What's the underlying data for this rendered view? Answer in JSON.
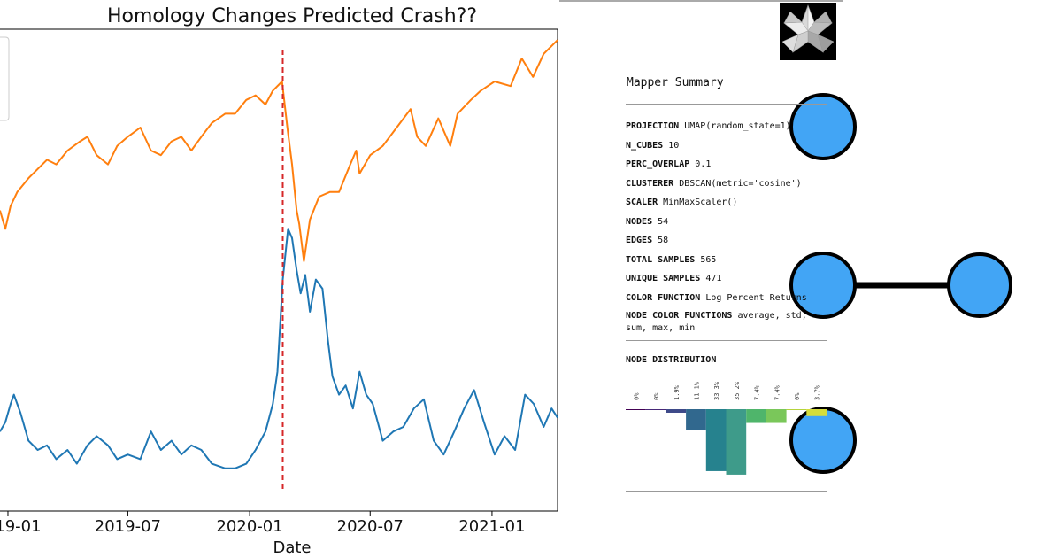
{
  "chart_data": {
    "type": "line",
    "title": "Homology Changes Predicted Crash??",
    "xlabel": "Date",
    "x_ticks": [
      "2019-01",
      "2019-07",
      "2020-01",
      "2020-07",
      "2021-01"
    ],
    "x_range": [
      "2018-12-20",
      "2021-04-10"
    ],
    "event_line": {
      "date": "2020-02-20",
      "color": "#d62728",
      "style": "dashed"
    },
    "series": [
      {
        "color": "#ff7f0e",
        "points": [
          [
            "2018-12-20",
            0.62
          ],
          [
            "2018-12-28",
            0.58
          ],
          [
            "2019-01-05",
            0.63
          ],
          [
            "2019-01-15",
            0.66
          ],
          [
            "2019-02-01",
            0.69
          ],
          [
            "2019-02-15",
            0.71
          ],
          [
            "2019-03-01",
            0.73
          ],
          [
            "2019-03-15",
            0.72
          ],
          [
            "2019-04-01",
            0.75
          ],
          [
            "2019-04-20",
            0.77
          ],
          [
            "2019-05-01",
            0.78
          ],
          [
            "2019-05-15",
            0.74
          ],
          [
            "2019-06-01",
            0.72
          ],
          [
            "2019-06-15",
            0.76
          ],
          [
            "2019-07-01",
            0.78
          ],
          [
            "2019-07-20",
            0.8
          ],
          [
            "2019-08-05",
            0.75
          ],
          [
            "2019-08-20",
            0.74
          ],
          [
            "2019-09-05",
            0.77
          ],
          [
            "2019-09-20",
            0.78
          ],
          [
            "2019-10-05",
            0.75
          ],
          [
            "2019-10-20",
            0.78
          ],
          [
            "2019-11-05",
            0.81
          ],
          [
            "2019-11-25",
            0.83
          ],
          [
            "2019-12-10",
            0.83
          ],
          [
            "2019-12-27",
            0.86
          ],
          [
            "2020-01-10",
            0.87
          ],
          [
            "2020-01-25",
            0.85
          ],
          [
            "2020-02-05",
            0.88
          ],
          [
            "2020-02-19",
            0.9
          ],
          [
            "2020-02-27",
            0.8
          ],
          [
            "2020-03-05",
            0.72
          ],
          [
            "2020-03-12",
            0.62
          ],
          [
            "2020-03-16",
            0.59
          ],
          [
            "2020-03-23",
            0.51
          ],
          [
            "2020-04-01",
            0.6
          ],
          [
            "2020-04-15",
            0.65
          ],
          [
            "2020-05-01",
            0.66
          ],
          [
            "2020-05-15",
            0.66
          ],
          [
            "2020-06-01",
            0.72
          ],
          [
            "2020-06-10",
            0.75
          ],
          [
            "2020-06-15",
            0.7
          ],
          [
            "2020-07-01",
            0.74
          ],
          [
            "2020-07-20",
            0.76
          ],
          [
            "2020-08-10",
            0.8
          ],
          [
            "2020-08-31",
            0.84
          ],
          [
            "2020-09-10",
            0.78
          ],
          [
            "2020-09-23",
            0.76
          ],
          [
            "2020-10-12",
            0.82
          ],
          [
            "2020-10-30",
            0.76
          ],
          [
            "2020-11-10",
            0.83
          ],
          [
            "2020-11-30",
            0.86
          ],
          [
            "2020-12-15",
            0.88
          ],
          [
            "2021-01-05",
            0.9
          ],
          [
            "2021-01-29",
            0.89
          ],
          [
            "2021-02-15",
            0.95
          ],
          [
            "2021-03-04",
            0.91
          ],
          [
            "2021-03-20",
            0.96
          ],
          [
            "2021-04-10",
            0.99
          ]
        ]
      },
      {
        "color": "#1f77b4",
        "points": [
          [
            "2018-12-20",
            0.14
          ],
          [
            "2018-12-28",
            0.16
          ],
          [
            "2019-01-05",
            0.2
          ],
          [
            "2019-01-10",
            0.22
          ],
          [
            "2019-01-20",
            0.18
          ],
          [
            "2019-02-01",
            0.12
          ],
          [
            "2019-02-15",
            0.1
          ],
          [
            "2019-03-01",
            0.11
          ],
          [
            "2019-03-15",
            0.08
          ],
          [
            "2019-04-01",
            0.1
          ],
          [
            "2019-04-15",
            0.07
          ],
          [
            "2019-05-01",
            0.11
          ],
          [
            "2019-05-15",
            0.13
          ],
          [
            "2019-06-01",
            0.11
          ],
          [
            "2019-06-15",
            0.08
          ],
          [
            "2019-07-01",
            0.09
          ],
          [
            "2019-07-20",
            0.08
          ],
          [
            "2019-08-05",
            0.14
          ],
          [
            "2019-08-20",
            0.1
          ],
          [
            "2019-09-05",
            0.12
          ],
          [
            "2019-09-20",
            0.09
          ],
          [
            "2019-10-05",
            0.11
          ],
          [
            "2019-10-20",
            0.1
          ],
          [
            "2019-11-05",
            0.07
          ],
          [
            "2019-11-25",
            0.06
          ],
          [
            "2019-12-10",
            0.06
          ],
          [
            "2019-12-27",
            0.07
          ],
          [
            "2020-01-10",
            0.1
          ],
          [
            "2020-01-25",
            0.14
          ],
          [
            "2020-02-05",
            0.2
          ],
          [
            "2020-02-12",
            0.27
          ],
          [
            "2020-02-20",
            0.47
          ],
          [
            "2020-02-28",
            0.58
          ],
          [
            "2020-03-05",
            0.56
          ],
          [
            "2020-03-12",
            0.49
          ],
          [
            "2020-03-18",
            0.44
          ],
          [
            "2020-03-25",
            0.48
          ],
          [
            "2020-04-01",
            0.4
          ],
          [
            "2020-04-10",
            0.47
          ],
          [
            "2020-04-20",
            0.45
          ],
          [
            "2020-04-28",
            0.34
          ],
          [
            "2020-05-05",
            0.26
          ],
          [
            "2020-05-15",
            0.22
          ],
          [
            "2020-05-25",
            0.24
          ],
          [
            "2020-06-05",
            0.19
          ],
          [
            "2020-06-15",
            0.27
          ],
          [
            "2020-06-25",
            0.22
          ],
          [
            "2020-07-05",
            0.2
          ],
          [
            "2020-07-20",
            0.12
          ],
          [
            "2020-08-05",
            0.14
          ],
          [
            "2020-08-20",
            0.15
          ],
          [
            "2020-09-05",
            0.19
          ],
          [
            "2020-09-20",
            0.21
          ],
          [
            "2020-10-05",
            0.12
          ],
          [
            "2020-10-20",
            0.09
          ],
          [
            "2020-11-05",
            0.14
          ],
          [
            "2020-11-20",
            0.19
          ],
          [
            "2020-12-05",
            0.23
          ],
          [
            "2020-12-20",
            0.16
          ],
          [
            "2021-01-05",
            0.09
          ],
          [
            "2021-01-20",
            0.13
          ],
          [
            "2021-02-05",
            0.1
          ],
          [
            "2021-02-20",
            0.22
          ],
          [
            "2021-03-05",
            0.2
          ],
          [
            "2021-03-20",
            0.15
          ],
          [
            "2021-04-01",
            0.19
          ],
          [
            "2021-04-10",
            0.17
          ]
        ]
      }
    ]
  },
  "mapper_summary": {
    "title": "Mapper Summary",
    "rows": [
      {
        "key": "PROJECTION",
        "value": "UMAP(random_state=1)"
      },
      {
        "key": "N_CUBES",
        "value": "10"
      },
      {
        "key": "PERC_OVERLAP",
        "value": "0.1"
      },
      {
        "key": "CLUSTERER",
        "value": "DBSCAN(metric='cosine')"
      },
      {
        "key": "SCALER",
        "value": "MinMaxScaler()"
      },
      {
        "key": "NODES",
        "value": "54"
      },
      {
        "key": "EDGES",
        "value": "58"
      },
      {
        "key": "TOTAL SAMPLES",
        "value": "565"
      },
      {
        "key": "UNIQUE SAMPLES",
        "value": "471"
      },
      {
        "key": "COLOR FUNCTION",
        "value": "Log Percent Returns"
      },
      {
        "key": "NODE COLOR FUNCTIONS",
        "value": "average, std, sum, max, min"
      }
    ],
    "node_distribution": {
      "title": "NODE DISTRIBUTION",
      "bins": [
        {
          "label": "0%",
          "value": 0,
          "color": "#440154"
        },
        {
          "label": "0%",
          "value": 0,
          "color": "#482878"
        },
        {
          "label": "1.9%",
          "value": 1.9,
          "color": "#3e4a89"
        },
        {
          "label": "11.1%",
          "value": 11.1,
          "color": "#31688e"
        },
        {
          "label": "33.3%",
          "value": 33.3,
          "color": "#26828e"
        },
        {
          "label": "35.2%",
          "value": 35.2,
          "color": "#3e9b8a"
        },
        {
          "label": "7.4%",
          "value": 7.4,
          "color": "#4fb56b"
        },
        {
          "label": "7.4%",
          "value": 7.4,
          "color": "#7ac75a"
        },
        {
          "label": "0%",
          "value": 0,
          "color": "#b5d33c"
        },
        {
          "label": "3.7%",
          "value": 3.7,
          "color": "#d5dd3b"
        }
      ]
    }
  },
  "mapper_graph": {
    "node_color": "#42a5f5",
    "edge_color": "#000000"
  }
}
